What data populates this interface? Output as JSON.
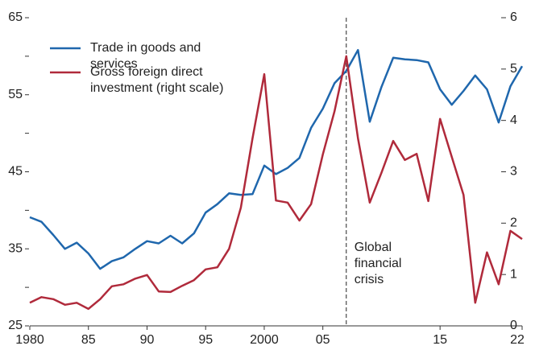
{
  "chart_data": {
    "type": "line",
    "x": [
      1980,
      1981,
      1982,
      1983,
      1984,
      1985,
      1986,
      1987,
      1988,
      1989,
      1990,
      1991,
      1992,
      1993,
      1994,
      1995,
      1996,
      1997,
      1998,
      1999,
      2000,
      2001,
      2002,
      2003,
      2004,
      2005,
      2006,
      2007,
      2008,
      2009,
      2010,
      2011,
      2012,
      2013,
      2014,
      2015,
      2016,
      2017,
      2018,
      2019,
      2020,
      2021,
      2022
    ],
    "series": [
      {
        "name": "Trade in goods and services",
        "color": "#1f67ad",
        "values": [
          39.1,
          38.5,
          36.8,
          35.0,
          35.8,
          34.4,
          32.4,
          33.4,
          33.9,
          35.0,
          36.0,
          35.7,
          36.7,
          35.7,
          37.0,
          39.7,
          40.8,
          42.2,
          42.0,
          42.1,
          45.8,
          44.7,
          45.5,
          46.8,
          50.7,
          53.2,
          56.5,
          58.1,
          60.8,
          51.5,
          56.0,
          59.8,
          59.6,
          59.5,
          59.2,
          55.7,
          53.7,
          55.5,
          57.5,
          55.7,
          51.4,
          56.1,
          58.7
        ]
      },
      {
        "name": "Gross foreign direct investment (right scale)",
        "color": "#b02a3b",
        "axis": "y2",
        "values": [
          0.45,
          0.56,
          0.52,
          0.41,
          0.45,
          0.33,
          0.52,
          0.77,
          0.81,
          0.92,
          0.99,
          0.67,
          0.66,
          0.78,
          0.89,
          1.1,
          1.14,
          1.5,
          2.3,
          3.65,
          4.9,
          2.44,
          2.4,
          2.05,
          2.37,
          3.34,
          4.18,
          5.25,
          3.65,
          2.4,
          2.98,
          3.6,
          3.23,
          3.35,
          2.43,
          4.03,
          3.29,
          2.55,
          0.45,
          1.43,
          0.81,
          1.85,
          1.69
        ]
      }
    ],
    "xlim": [
      1980,
      2022
    ],
    "xticks": [
      {
        "value": 1980,
        "label": "1980"
      },
      {
        "value": 1985,
        "label": "85"
      },
      {
        "value": 1990,
        "label": "90"
      },
      {
        "value": 1995,
        "label": "95"
      },
      {
        "value": 2000,
        "label": "2000"
      },
      {
        "value": 2005,
        "label": "05"
      },
      {
        "value": 2015,
        "label": "15"
      },
      {
        "value": 2022,
        "label": "22"
      }
    ],
    "ylim": [
      25,
      65
    ],
    "yticks": [
      25,
      35,
      45,
      55,
      65
    ],
    "yminorticks": [
      30,
      40,
      50,
      60
    ],
    "y2lim": [
      0,
      6
    ],
    "y2ticks": [
      0,
      1,
      2,
      3,
      4,
      5,
      6
    ],
    "annotation": {
      "x": 2007,
      "text": "Global financial crisis"
    },
    "legend": "upper left"
  }
}
